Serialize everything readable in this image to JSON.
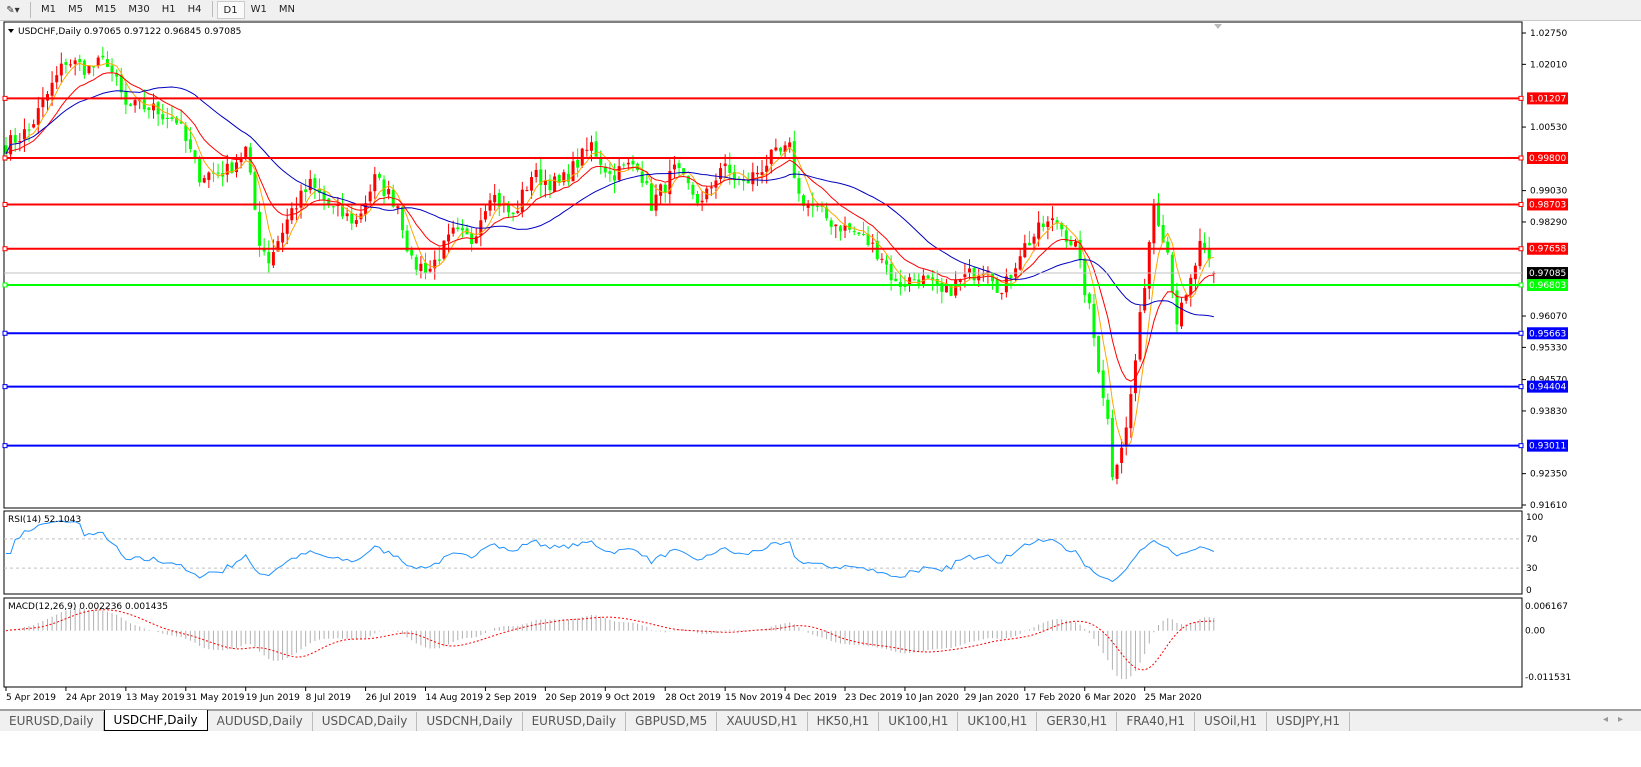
{
  "toolbar": {
    "timeframes": [
      "M1",
      "M5",
      "M15",
      "M30",
      "H1",
      "H4",
      "D1",
      "W1",
      "MN"
    ],
    "active": "D1"
  },
  "chart": {
    "header": "USDCHF,Daily  0.97065 0.97122 0.96845 0.97085",
    "symbol": "USDCHF",
    "period": "Daily",
    "ohlc": {
      "open": 0.97065,
      "high": 0.97122,
      "low": 0.96845,
      "close": 0.97085
    },
    "price_range": [
      0.9161,
      1.0275
    ],
    "price_ticks": [
      "1.02750",
      "1.02010",
      "1.00530",
      "0.99030",
      "0.98290",
      "0.96070",
      "0.95330",
      "0.94570",
      "0.93830",
      "0.92350",
      "0.91610"
    ],
    "levels": [
      {
        "price": "1.01207",
        "color": "#ff0000"
      },
      {
        "price": "0.99800",
        "color": "#ff0000"
      },
      {
        "price": "0.98703",
        "color": "#ff0000"
      },
      {
        "price": "0.97658",
        "color": "#ff0000"
      },
      {
        "price": "0.97085",
        "color": "#c0c0c0",
        "label_bg": "#000000",
        "current": true
      },
      {
        "price": "0.96803",
        "color": "#00ff00"
      },
      {
        "price": "0.95663",
        "color": "#0000ff"
      },
      {
        "price": "0.94404",
        "color": "#0000ff"
      },
      {
        "price": "0.93011",
        "color": "#0000ff"
      }
    ],
    "bull_color": "#ff0000",
    "bear_color": "#00ff00",
    "ma_colors": {
      "fast": "#ffa500",
      "mid": "#ff0000",
      "slow": "#0000c0"
    },
    "close_path": [
      [
        0,
        1.001
      ],
      [
        5,
        1.0046
      ],
      [
        10,
        1.015
      ],
      [
        13,
        1.021
      ],
      [
        18,
        1.019
      ],
      [
        22,
        1.021
      ],
      [
        26,
        1.01
      ],
      [
        31,
        1.01
      ],
      [
        37,
        1.007
      ],
      [
        42,
        0.994
      ],
      [
        48,
        0.995
      ],
      [
        52,
        1.0
      ],
      [
        55,
        0.9786
      ],
      [
        57,
        0.974
      ],
      [
        62,
        0.9857
      ],
      [
        66,
        0.9916
      ],
      [
        71,
        0.9857
      ],
      [
        76,
        0.983
      ],
      [
        80,
        0.993
      ],
      [
        85,
        0.987
      ],
      [
        88,
        0.973
      ],
      [
        92,
        0.972
      ],
      [
        97,
        0.98
      ],
      [
        101,
        0.9786
      ],
      [
        105,
        0.99
      ],
      [
        110,
        0.984
      ],
      [
        114,
        0.994
      ],
      [
        120,
        0.9916
      ],
      [
        127,
        1.001
      ],
      [
        131,
        0.994
      ],
      [
        137,
        0.997
      ],
      [
        140,
        0.987
      ],
      [
        145,
        0.995
      ],
      [
        151,
        0.987
      ],
      [
        155,
        0.996
      ],
      [
        160,
        0.9916
      ],
      [
        166,
        0.998
      ],
      [
        170,
        1.0
      ],
      [
        172,
        0.989
      ],
      [
        179,
        0.983
      ],
      [
        185,
        0.98
      ],
      [
        190,
        0.975
      ],
      [
        193,
        0.968
      ],
      [
        198,
        0.97
      ],
      [
        203,
        0.9657
      ],
      [
        207,
        0.969
      ],
      [
        213,
        0.973
      ],
      [
        216,
        0.9657
      ],
      [
        220,
        0.976
      ],
      [
        225,
        0.982
      ],
      [
        228,
        0.983
      ],
      [
        232,
        0.977
      ],
      [
        235,
        0.962
      ],
      [
        239,
        0.936
      ],
      [
        240,
        0.924
      ],
      [
        243,
        0.9338
      ],
      [
        245,
        0.9503
      ],
      [
        247,
        0.969
      ],
      [
        249,
        0.988
      ],
      [
        252,
        0.976
      ],
      [
        254,
        0.9598
      ],
      [
        256,
        0.9645
      ],
      [
        259,
        0.977
      ],
      [
        262,
        0.97085
      ]
    ],
    "dates": [
      "5 Apr 2019",
      "24 Apr 2019",
      "13 May 2019",
      "31 May 2019",
      "19 Jun 2019",
      "8 Jul 2019",
      "26 Jul 2019",
      "14 Aug 2019",
      "2 Sep 2019",
      "20 Sep 2019",
      "9 Oct 2019",
      "28 Oct 2019",
      "15 Nov 2019",
      "4 Dec 2019",
      "23 Dec 2019",
      "10 Jan 2020",
      "29 Jan 2020",
      "17 Feb 2020",
      "6 Mar 2020",
      "25 Mar 2020"
    ]
  },
  "rsi": {
    "label": "RSI(14) 52.1043",
    "ticks": [
      "100",
      "70",
      "30",
      "0"
    ],
    "levels": [
      70,
      30
    ],
    "color": "#1e90ff"
  },
  "macd": {
    "label": "MACD(12,26,9) 0.002236 0.001435",
    "ticks": [
      "0.006167",
      "0.00",
      "-0.011531"
    ],
    "range": [
      -0.011531,
      0.006167
    ]
  },
  "tabs": [
    "EURUSD,Daily",
    "USDCHF,Daily",
    "AUDUSD,Daily",
    "USDCAD,Daily",
    "USDCNH,Daily",
    "EURUSD,Daily",
    "GBPUSD,M5",
    "XAUUSD,H1",
    "HK50,H1",
    "UK100,H1",
    "UK100,H1",
    "GER30,H1",
    "FRA40,H1",
    "USOil,H1",
    "USDJPY,H1"
  ],
  "active_tab": 1
}
